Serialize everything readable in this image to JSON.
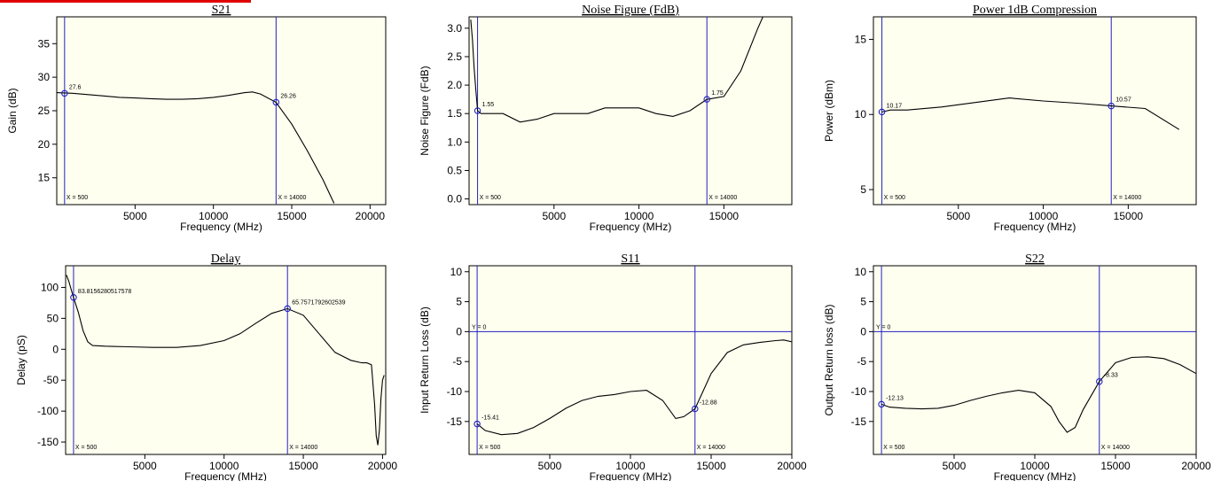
{
  "colors": {
    "plot_bg": "#FFFFF0",
    "marker": "#2020C0",
    "trace": "#000000",
    "top_bar": "#E00000"
  },
  "chart_data": [
    {
      "type": "line",
      "title": "S21",
      "xlabel": "Frequency (MHz)",
      "ylabel": "Gain (dB)",
      "xlim": [
        0,
        21000
      ],
      "ylim": [
        11,
        39
      ],
      "xticks": [
        5000,
        10000,
        15000,
        20000
      ],
      "yticks": [
        15,
        20,
        25,
        30,
        35
      ],
      "xtick_labels": [
        "5000",
        "10000",
        "15000",
        "20000"
      ],
      "ytick_labels": [
        "15",
        "20",
        "25",
        "30",
        "35"
      ],
      "x": [
        0,
        1000,
        2000,
        3000,
        4000,
        5000,
        6000,
        7000,
        8000,
        9000,
        10000,
        11000,
        12000,
        12500,
        13000,
        14000,
        15000,
        16000,
        17000,
        17700
      ],
      "y": [
        27.7,
        27.6,
        27.4,
        27.2,
        27.0,
        26.9,
        26.8,
        26.7,
        26.7,
        26.8,
        27.0,
        27.3,
        27.7,
        27.8,
        27.5,
        26.26,
        23.0,
        19.0,
        14.7,
        11.2
      ],
      "vlines": [
        500,
        14000
      ],
      "vline_labels": [
        "X = 500",
        "X = 14000"
      ],
      "hlines": [],
      "hline_labels": [],
      "markers": [
        {
          "x": 500,
          "y": 27.6,
          "label": "27.6"
        },
        {
          "x": 14000,
          "y": 26.26,
          "label": "26.26"
        }
      ]
    },
    {
      "type": "line",
      "title": "Noise Figure (FdB)",
      "xlabel": "Frequency (MHz)",
      "ylabel": "Noise Figure (FdB)",
      "xlim": [
        0,
        19000
      ],
      "ylim": [
        -0.1,
        3.2
      ],
      "xticks": [
        5000,
        10000,
        15000
      ],
      "yticks": [
        0,
        0.5,
        1,
        1.5,
        2,
        2.5,
        3
      ],
      "xtick_labels": [
        "5000",
        "10000",
        "15000"
      ],
      "ytick_labels": [
        "0.0",
        "0.5",
        "1.0",
        "1.5",
        "2.0",
        "2.5",
        "3.0"
      ],
      "x": [
        100,
        200,
        300,
        400,
        500,
        700,
        1000,
        2000,
        3000,
        4000,
        5000,
        6000,
        7000,
        8000,
        9000,
        10000,
        11000,
        12000,
        13000,
        14000,
        15000,
        16000,
        17000,
        17300
      ],
      "y": [
        3.15,
        2.8,
        2.3,
        1.9,
        1.55,
        1.5,
        1.5,
        1.5,
        1.35,
        1.4,
        1.5,
        1.5,
        1.5,
        1.6,
        1.6,
        1.6,
        1.5,
        1.45,
        1.55,
        1.75,
        1.8,
        2.25,
        3.0,
        3.2
      ],
      "vlines": [
        500,
        14000
      ],
      "vline_labels": [
        "X = 500",
        "X = 14000"
      ],
      "hlines": [],
      "hline_labels": [],
      "markers": [
        {
          "x": 500,
          "y": 1.55,
          "label": "1.55"
        },
        {
          "x": 14000,
          "y": 1.75,
          "label": "1.75"
        }
      ]
    },
    {
      "type": "line",
      "title": "Power 1dB Compression",
      "xlabel": "Frequency (MHz)",
      "ylabel": "Power (dBm)",
      "xlim": [
        0,
        19000
      ],
      "ylim": [
        4,
        16.5
      ],
      "xticks": [
        5000,
        10000,
        15000
      ],
      "yticks": [
        5,
        10,
        15
      ],
      "xtick_labels": [
        "5000",
        "10000",
        "15000"
      ],
      "ytick_labels": [
        "5",
        "10",
        "15"
      ],
      "x": [
        500,
        1000,
        2000,
        4000,
        6000,
        8000,
        10000,
        12000,
        14000,
        16000,
        18000
      ],
      "y": [
        10.17,
        10.3,
        10.3,
        10.5,
        10.8,
        11.1,
        10.9,
        10.75,
        10.57,
        10.4,
        9.0
      ],
      "vlines": [
        500,
        14000
      ],
      "vline_labels": [
        "X = 500",
        "X = 14000"
      ],
      "hlines": [],
      "hline_labels": [],
      "markers": [
        {
          "x": 500,
          "y": 10.17,
          "label": "10.17"
        },
        {
          "x": 14000,
          "y": 10.57,
          "label": "10.57"
        }
      ]
    },
    {
      "type": "line",
      "title": "Delay",
      "xlabel": "Frequency (MHz)",
      "ylabel": "Delay (pS)",
      "xlim": [
        0,
        20200
      ],
      "ylim": [
        -170,
        135
      ],
      "xticks": [
        5000,
        10000,
        15000,
        20000
      ],
      "yticks": [
        -150,
        -100,
        -50,
        0,
        50,
        100
      ],
      "xtick_labels": [
        "5000",
        "10000",
        "15000",
        "20000"
      ],
      "ytick_labels": [
        "-150",
        "-100",
        "-50",
        "0",
        "50",
        "100"
      ],
      "x": [
        50,
        200,
        500,
        800,
        1100,
        1400,
        1700,
        2500,
        4000,
        5500,
        7000,
        8500,
        10000,
        11000,
        12000,
        13000,
        14000,
        15000,
        16000,
        17000,
        18000,
        18700,
        19000,
        19300,
        19500,
        19600,
        19700,
        19800,
        19900,
        20000,
        20100
      ],
      "y": [
        120,
        110,
        83.8,
        60,
        30,
        12,
        6,
        5,
        4,
        3,
        3,
        6,
        14,
        25,
        42,
        58,
        65.76,
        55,
        25,
        -5,
        -18,
        -22,
        -22,
        -25,
        -90,
        -140,
        -155,
        -130,
        -80,
        -50,
        -42
      ],
      "vlines": [
        500,
        14000
      ],
      "vline_labels": [
        "X = 500",
        "X = 14000"
      ],
      "hlines": [],
      "hline_labels": [],
      "markers": [
        {
          "x": 500,
          "y": 83.8,
          "label": "83.8156280517578"
        },
        {
          "x": 14000,
          "y": 65.76,
          "label": "65.7571792602539"
        }
      ]
    },
    {
      "type": "line",
      "title": "S11",
      "xlabel": "Frequency (MHz)",
      "ylabel": "Input Return Loss (dB)",
      "xlim": [
        0,
        20000
      ],
      "ylim": [
        -20.5,
        11
      ],
      "xticks": [
        5000,
        10000,
        15000,
        20000
      ],
      "yticks": [
        -15,
        -10,
        -5,
        0,
        5,
        10
      ],
      "xtick_labels": [
        "5000",
        "10000",
        "15000",
        "20000"
      ],
      "ytick_labels": [
        "-15",
        "-10",
        "-5",
        "0",
        "5",
        "10"
      ],
      "x": [
        500,
        1000,
        2000,
        3000,
        4000,
        5000,
        6000,
        7000,
        8000,
        9000,
        10000,
        11000,
        12000,
        12800,
        13300,
        14000,
        15000,
        16000,
        17000,
        18000,
        19000,
        19500,
        20000
      ],
      "y": [
        -15.41,
        -16.5,
        -17.2,
        -17.0,
        -16.0,
        -14.5,
        -12.8,
        -11.5,
        -10.8,
        -10.5,
        -10.0,
        -9.8,
        -11.5,
        -14.5,
        -14.2,
        -12.88,
        -7.0,
        -3.5,
        -2.2,
        -1.8,
        -1.5,
        -1.4,
        -1.7
      ],
      "vlines": [
        500,
        14000
      ],
      "vline_labels": [
        "X = 500",
        "X = 14000"
      ],
      "hlines": [
        0
      ],
      "hline_labels": [
        "Y = 0"
      ],
      "markers": [
        {
          "x": 500,
          "y": -15.41,
          "label": "-15.41"
        },
        {
          "x": 14000,
          "y": -12.88,
          "label": "-12.88"
        }
      ]
    },
    {
      "type": "line",
      "title": "S22",
      "xlabel": "Frequency (MHz)",
      "ylabel": "Output Return loss (dB)",
      "xlim": [
        0,
        20000
      ],
      "ylim": [
        -20.5,
        11
      ],
      "xticks": [
        5000,
        10000,
        15000,
        20000
      ],
      "yticks": [
        -15,
        -10,
        -5,
        0,
        5,
        10
      ],
      "xtick_labels": [
        "5000",
        "10000",
        "15000",
        "20000"
      ],
      "ytick_labels": [
        "-15",
        "-10",
        "-5",
        "0",
        "5",
        "10"
      ],
      "x": [
        500,
        1000,
        2000,
        3000,
        4000,
        5000,
        6000,
        7000,
        8000,
        9000,
        10000,
        11000,
        11500,
        12000,
        12500,
        13000,
        14000,
        15000,
        16000,
        17000,
        18000,
        19000,
        20000
      ],
      "y": [
        -12.13,
        -12.6,
        -12.8,
        -12.9,
        -12.8,
        -12.3,
        -11.5,
        -10.8,
        -10.2,
        -9.8,
        -10.2,
        -12.5,
        -15.0,
        -16.8,
        -16.0,
        -13.0,
        -8.33,
        -5.2,
        -4.3,
        -4.2,
        -4.5,
        -5.5,
        -7.0
      ],
      "vlines": [
        500,
        14000
      ],
      "vline_labels": [
        "X = 500",
        "X = 14000"
      ],
      "hlines": [
        0
      ],
      "hline_labels": [
        "Y = 0"
      ],
      "markers": [
        {
          "x": 500,
          "y": -12.13,
          "label": "-12.13"
        },
        {
          "x": 14000,
          "y": -8.33,
          "label": "-8.33"
        }
      ]
    }
  ]
}
